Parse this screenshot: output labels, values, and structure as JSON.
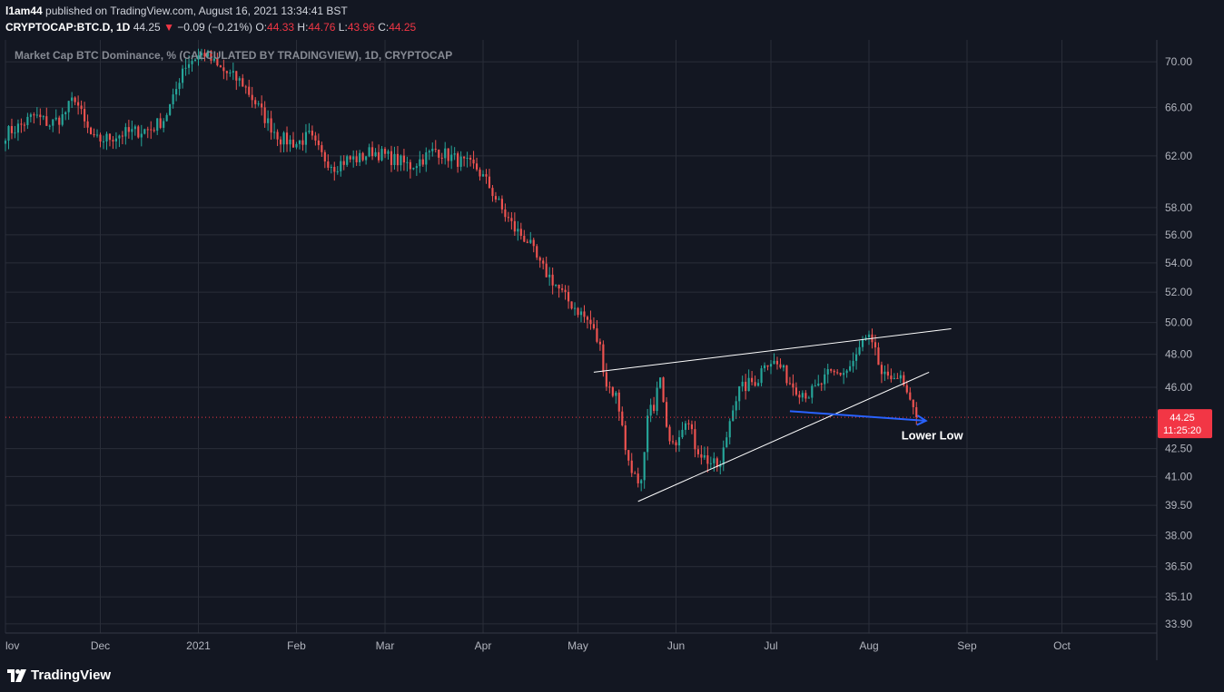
{
  "header": {
    "publisher": "l1am44",
    "published_text": "published on TradingView.com, August 16, 2021 13:34:41 BST",
    "symbol": "CRYPTOCAP:BTC.D, 1D",
    "last": "44.25",
    "change": "−0.09 (−0.21%)",
    "o_label": "O:",
    "o_value": "44.33",
    "h_label": "H:",
    "h_value": "44.76",
    "l_label": "L:",
    "l_value": "43.96",
    "c_label": "C:",
    "c_value": "44.25"
  },
  "colors": {
    "background": "#131722",
    "grid": "#2a2e39",
    "up": "#26a69a",
    "down": "#ef5350",
    "trendline": "#ffffff",
    "arrow": "#2962ff",
    "price_marker": "#f23645"
  },
  "footer": {
    "brand": "TradingView",
    "logo_icon": "tradingview-logo-icon"
  },
  "chart_data": {
    "type": "candlestick",
    "title": "Market Cap BTC Dominance, % (CALCULATED BY TRADINGVIEW), 1D, CRYPTOCAP",
    "y_scale": "log",
    "y_ticks": [
      "70.00",
      "66.00",
      "62.00",
      "58.00",
      "56.00",
      "54.00",
      "52.00",
      "50.00",
      "48.00",
      "46.00",
      "44.25",
      "42.50",
      "41.00",
      "39.50",
      "38.00",
      "36.50",
      "35.10",
      "33.90"
    ],
    "ylim": [
      33.5,
      72
    ],
    "x_ticks": [
      "lov",
      "Dec",
      "2021",
      "Feb",
      "Mar",
      "Apr",
      "May",
      "Jun",
      "Jul",
      "Aug",
      "Sep",
      "Oct"
    ],
    "x_tick_dates": [
      "2020-11-01",
      "2020-12-01",
      "2021-01-01",
      "2021-02-01",
      "2021-03-01",
      "2021-04-01",
      "2021-05-01",
      "2021-06-01",
      "2021-07-01",
      "2021-08-01",
      "2021-09-01",
      "2021-10-01"
    ],
    "x_range": [
      "2020-11-01",
      "2021-10-31"
    ],
    "current_price": 44.25,
    "countdown": "11:25:20",
    "trend": [
      [
        "2020-11-01",
        63.8
      ],
      [
        "2020-11-06",
        64.5
      ],
      [
        "2020-11-10",
        65.3
      ],
      [
        "2020-11-15",
        64.6
      ],
      [
        "2020-11-19",
        65.2
      ],
      [
        "2020-11-23",
        66.9
      ],
      [
        "2020-11-26",
        64.6
      ],
      [
        "2020-11-29",
        63.2
      ],
      [
        "2020-12-03",
        63.4
      ],
      [
        "2020-12-08",
        63.8
      ],
      [
        "2020-12-13",
        64.0
      ],
      [
        "2020-12-17",
        64.2
      ],
      [
        "2020-12-21",
        65.0
      ],
      [
        "2020-12-24",
        66.6
      ],
      [
        "2020-12-27",
        69.5
      ],
      [
        "2020-12-31",
        70.4
      ],
      [
        "2021-01-03",
        70.8
      ],
      [
        "2021-01-07",
        69.5
      ],
      [
        "2021-01-11",
        68.8
      ],
      [
        "2021-01-15",
        68.1
      ],
      [
        "2021-01-19",
        66.4
      ],
      [
        "2021-01-23",
        64.7
      ],
      [
        "2021-01-27",
        63.4
      ],
      [
        "2021-02-01",
        63.0
      ],
      [
        "2021-02-05",
        63.6
      ],
      [
        "2021-02-09",
        62.0
      ],
      [
        "2021-02-13",
        61.2
      ],
      [
        "2021-02-17",
        61.7
      ],
      [
        "2021-02-21",
        61.8
      ],
      [
        "2021-02-25",
        62.4
      ],
      [
        "2021-03-01",
        62.0
      ],
      [
        "2021-03-05",
        61.6
      ],
      [
        "2021-03-09",
        61.2
      ],
      [
        "2021-03-13",
        61.8
      ],
      [
        "2021-03-17",
        62.5
      ],
      [
        "2021-03-21",
        62.0
      ],
      [
        "2021-03-26",
        61.4
      ],
      [
        "2021-03-30",
        61.0
      ],
      [
        "2021-04-03",
        59.6
      ],
      [
        "2021-04-07",
        57.8
      ],
      [
        "2021-04-11",
        56.4
      ],
      [
        "2021-04-15",
        55.6
      ],
      [
        "2021-04-19",
        53.8
      ],
      [
        "2021-04-23",
        52.8
      ],
      [
        "2021-04-27",
        51.6
      ],
      [
        "2021-05-01",
        50.8
      ],
      [
        "2021-05-05",
        49.9
      ],
      [
        "2021-05-08",
        48.4
      ],
      [
        "2021-05-10",
        46.2
      ],
      [
        "2021-05-13",
        45.5
      ],
      [
        "2021-05-15",
        44.0
      ],
      [
        "2021-05-16",
        42.3
      ],
      [
        "2021-05-18",
        41.5
      ],
      [
        "2021-05-20",
        40.4
      ],
      [
        "2021-05-21",
        40.5
      ],
      [
        "2021-05-22",
        42.0
      ],
      [
        "2021-05-23",
        44.2
      ],
      [
        "2021-05-25",
        45.0
      ],
      [
        "2021-05-27",
        46.5
      ],
      [
        "2021-05-29",
        43.4
      ],
      [
        "2021-06-01",
        43.0
      ],
      [
        "2021-06-04",
        44.3
      ],
      [
        "2021-06-07",
        42.7
      ],
      [
        "2021-06-10",
        42.0
      ],
      [
        "2021-06-13",
        41.6
      ],
      [
        "2021-06-15",
        41.5
      ],
      [
        "2021-06-17",
        43.2
      ],
      [
        "2021-06-19",
        45.0
      ],
      [
        "2021-06-21",
        45.8
      ],
      [
        "2021-06-24",
        46.2
      ],
      [
        "2021-06-27",
        46.5
      ],
      [
        "2021-06-29",
        47.6
      ],
      [
        "2021-07-01",
        47.6
      ],
      [
        "2021-07-04",
        47.2
      ],
      [
        "2021-07-07",
        46.3
      ],
      [
        "2021-07-10",
        45.8
      ],
      [
        "2021-07-13",
        45.6
      ],
      [
        "2021-07-16",
        46.0
      ],
      [
        "2021-07-19",
        46.7
      ],
      [
        "2021-07-22",
        46.8
      ],
      [
        "2021-07-25",
        47.0
      ],
      [
        "2021-07-28",
        47.8
      ],
      [
        "2021-07-30",
        48.8
      ],
      [
        "2021-08-01",
        48.9
      ],
      [
        "2021-08-03",
        48.0
      ],
      [
        "2021-08-05",
        46.8
      ],
      [
        "2021-08-07",
        46.3
      ],
      [
        "2021-08-09",
        46.9
      ],
      [
        "2021-08-11",
        46.4
      ],
      [
        "2021-08-13",
        45.5
      ],
      [
        "2021-08-14",
        44.9
      ],
      [
        "2021-08-15",
        44.6
      ],
      [
        "2021-08-16",
        44.25
      ]
    ],
    "annotations": [
      {
        "type": "trendline",
        "from": [
          "2021-05-06",
          46.9
        ],
        "to": [
          "2021-08-27",
          49.6
        ]
      },
      {
        "type": "trendline",
        "from": [
          "2021-05-20",
          39.7
        ],
        "to": [
          "2021-08-20",
          46.9
        ]
      },
      {
        "type": "arrow",
        "from": [
          "2021-07-07",
          44.6
        ],
        "to": [
          "2021-08-19",
          44.05
        ]
      },
      {
        "type": "text",
        "text": "Lower Low",
        "at": [
          "2021-08-21",
          43.0
        ]
      }
    ]
  }
}
